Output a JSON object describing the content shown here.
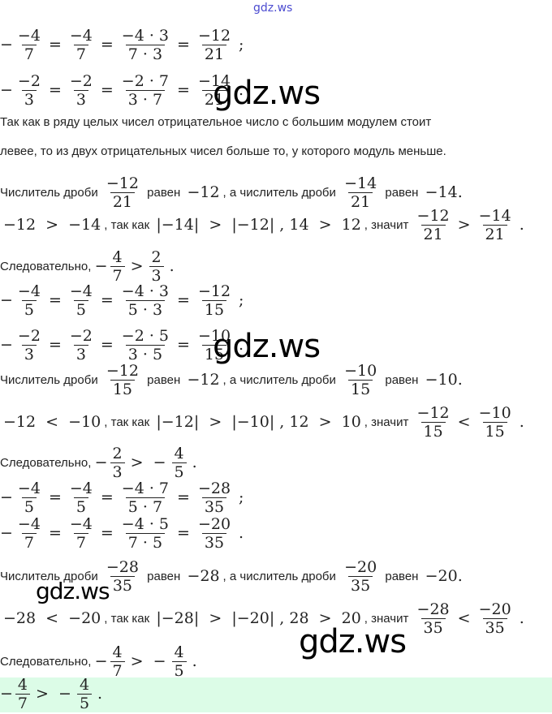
{
  "watermarks": {
    "top": "gdz.ws",
    "big": "gdz.ws"
  },
  "colors": {
    "answer_bg": "#dcfce7",
    "watermark_top": "#4b4bd0"
  },
  "lines": [
    [
      [
        "f",
        "−4",
        "7",
        true
      ],
      [
        "m",
        "="
      ],
      [
        "f",
        "−4",
        "7"
      ],
      [
        "m",
        "="
      ],
      [
        "f",
        "−4 · 3",
        "7 · 3"
      ],
      [
        "m",
        "="
      ],
      [
        "f",
        "−12",
        "21"
      ],
      [
        "m",
        ";"
      ]
    ],
    [
      [
        "f",
        "−2",
        "3",
        true
      ],
      [
        "m",
        "="
      ],
      [
        "f",
        "−2",
        "3"
      ],
      [
        "m",
        "="
      ],
      [
        "f",
        "−2 · 7",
        "3 · 7"
      ],
      [
        "m",
        "="
      ],
      [
        "f",
        "−14",
        "21"
      ],
      [
        "m",
        "."
      ]
    ],
    [
      [
        "t",
        "Так как в ряду целых чисел отрицательное число с большим модулем стоит"
      ]
    ],
    [
      [
        "t",
        "левее, то из двух отрицательных чисел больше то, у которого модуль меньше."
      ]
    ],
    [
      [
        "t",
        "Числитель дроби "
      ],
      [
        "f",
        "−12",
        "21"
      ],
      [
        "t",
        " равен "
      ],
      [
        "m",
        "−12"
      ],
      [
        "t",
        ", а числитель дроби "
      ],
      [
        "f",
        "−14",
        "21"
      ],
      [
        "t",
        " равен "
      ],
      [
        "m",
        "−14."
      ]
    ],
    [
      [
        "m",
        "−12  >  −14"
      ],
      [
        "t",
        ", так как "
      ],
      [
        "m",
        "|−14|  >  |−12| , 14  >  12"
      ],
      [
        "t",
        ", значит "
      ],
      [
        "f",
        "−12",
        "21"
      ],
      [
        "m",
        ">"
      ],
      [
        "f",
        "−14",
        "21"
      ],
      [
        "m",
        "."
      ]
    ],
    [
      [
        "t",
        "Следовательно, "
      ],
      [
        "f",
        "4",
        "7",
        true
      ],
      [
        "m",
        ">"
      ],
      [
        "f",
        "2",
        "3"
      ],
      [
        "m",
        "."
      ]
    ],
    [
      [
        "f",
        "−4",
        "5",
        true
      ],
      [
        "m",
        "="
      ],
      [
        "f",
        "−4",
        "5"
      ],
      [
        "m",
        "="
      ],
      [
        "f",
        "−4 · 3",
        "5 · 3"
      ],
      [
        "m",
        "="
      ],
      [
        "f",
        "−12",
        "15"
      ],
      [
        "m",
        ";"
      ]
    ],
    [
      [
        "f",
        "−2",
        "3",
        true
      ],
      [
        "m",
        "="
      ],
      [
        "f",
        "−2",
        "3"
      ],
      [
        "m",
        "="
      ],
      [
        "f",
        "−2 · 5",
        "3 · 5"
      ],
      [
        "m",
        "="
      ],
      [
        "f",
        "−10",
        "15"
      ],
      [
        "m",
        "."
      ]
    ],
    [
      [
        "t",
        "Числитель дроби "
      ],
      [
        "f",
        "−12",
        "15"
      ],
      [
        "t",
        " равен "
      ],
      [
        "m",
        "−12"
      ],
      [
        "t",
        ", а числитель дроби "
      ],
      [
        "f",
        "−10",
        "15"
      ],
      [
        "t",
        " равен "
      ],
      [
        "m",
        "−10."
      ]
    ],
    [
      [
        "m",
        "−12  <  −10"
      ],
      [
        "t",
        ", так как "
      ],
      [
        "m",
        "|−12|  >  |−10| , 12  >  10"
      ],
      [
        "t",
        ", значит "
      ],
      [
        "f",
        "−12",
        "15"
      ],
      [
        "m",
        "<"
      ],
      [
        "f",
        "−10",
        "15"
      ],
      [
        "m",
        "."
      ]
    ],
    [
      [
        "t",
        "Следовательно, "
      ],
      [
        "f",
        "2",
        "3",
        true
      ],
      [
        "m",
        ">  −"
      ],
      [
        "f",
        "4",
        "5"
      ],
      [
        "m",
        "."
      ]
    ],
    [
      [
        "f",
        "−4",
        "5",
        true
      ],
      [
        "m",
        "="
      ],
      [
        "f",
        "−4",
        "5"
      ],
      [
        "m",
        "="
      ],
      [
        "f",
        "−4 · 7",
        "5 · 7"
      ],
      [
        "m",
        "="
      ],
      [
        "f",
        "−28",
        "35"
      ],
      [
        "m",
        ";"
      ]
    ],
    [
      [
        "f",
        "−4",
        "7",
        true
      ],
      [
        "m",
        "="
      ],
      [
        "f",
        "−4",
        "7"
      ],
      [
        "m",
        "="
      ],
      [
        "f",
        "−4 · 5",
        "7 · 5"
      ],
      [
        "m",
        "="
      ],
      [
        "f",
        "−20",
        "35"
      ],
      [
        "m",
        "."
      ]
    ],
    [
      [
        "t",
        "Числитель дроби "
      ],
      [
        "f",
        "−28",
        "35"
      ],
      [
        "t",
        " равен "
      ],
      [
        "m",
        "−28"
      ],
      [
        "t",
        ", а числитель дроби "
      ],
      [
        "f",
        "−20",
        "35"
      ],
      [
        "t",
        " равен "
      ],
      [
        "m",
        "−20."
      ]
    ],
    [
      [
        "m",
        "−28  <  −20"
      ],
      [
        "t",
        ", так как "
      ],
      [
        "m",
        "|−28|  >  |−20| , 28  >  20"
      ],
      [
        "t",
        ", значит "
      ],
      [
        "f",
        "−28",
        "35"
      ],
      [
        "m",
        "<"
      ],
      [
        "f",
        "−20",
        "35"
      ],
      [
        "m",
        "."
      ]
    ],
    [
      [
        "t",
        "Следовательно, "
      ],
      [
        "f",
        "4",
        "7",
        true
      ],
      [
        "m",
        ">  −"
      ],
      [
        "f",
        "4",
        "5"
      ],
      [
        "m",
        "."
      ]
    ],
    [
      [
        "f",
        "4",
        "7",
        true
      ],
      [
        "m",
        ">  −"
      ],
      [
        "f",
        "4",
        "5"
      ],
      [
        "m",
        "."
      ]
    ]
  ]
}
